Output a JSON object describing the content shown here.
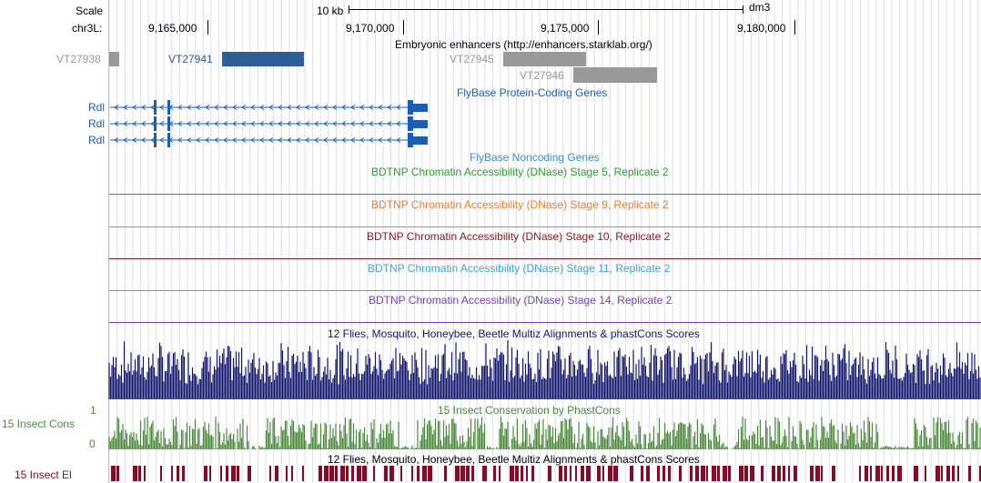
{
  "ruler": {
    "scale_label": "Scale",
    "scale_value": "10 kb",
    "assembly": "dm3",
    "chrom_label": "chr3L:",
    "ticks": [
      "9,165,000",
      "9,170,000",
      "9,175,000",
      "9,180,000"
    ]
  },
  "tracks": {
    "enhancers": {
      "title": "Embryonic enhancers (http://enhancers.starklab.org/)",
      "items": [
        "VT27938",
        "VT27941",
        "VT27945",
        "VT27946"
      ]
    },
    "flybase_coding": {
      "title": "FlyBase Protein-Coding Genes",
      "genes": [
        "Rdl",
        "Rdl",
        "Rdl"
      ]
    },
    "flybase_noncoding": {
      "title": "FlyBase Noncoding Genes"
    },
    "dnase": [
      {
        "title": "BDTNP Chromatin Accessibility (DNase) Stage 5, Replicate 2",
        "color": "#2ca02c"
      },
      {
        "title": "BDTNP Chromatin Accessibility (DNase) Stage 9, Replicate 2",
        "color": "#f07f2a"
      },
      {
        "title": "BDTNP Chromatin Accessibility (DNase) Stage 10, Replicate 2",
        "color": "#8b1a1a"
      },
      {
        "title": "BDTNP Chromatin Accessibility (DNase) Stage 11, Replicate 2",
        "color": "#3aa8d8"
      },
      {
        "title": "BDTNP Chromatin Accessibility (DNase) Stage 14, Replicate 2",
        "color": "#7b3fb2"
      }
    ],
    "multiz": {
      "title": "12 Flies, Mosquito, Honeybee, Beetle Multiz Alignments & phastCons Scores",
      "color": "#13186e"
    },
    "phastcons": {
      "title": "15 Insect Conservation by PhastCons",
      "left_label": "15 Insect Cons",
      "axis_max": "1",
      "axis_min": "0",
      "color": "#4d8a3c"
    },
    "multiz2": {
      "title": "12 Flies, Mosquito, Honeybee, Beetle Multiz Alignments & phastCons Scores"
    },
    "elements": {
      "left_label": "15 Insect El",
      "color": "#7d0f26"
    }
  },
  "colors": {
    "enhancer_gray": "#999999",
    "enhancer_blue": "#2e5e96",
    "gene_blue": "#1a5fb4",
    "grid": "#dcdcf2"
  }
}
